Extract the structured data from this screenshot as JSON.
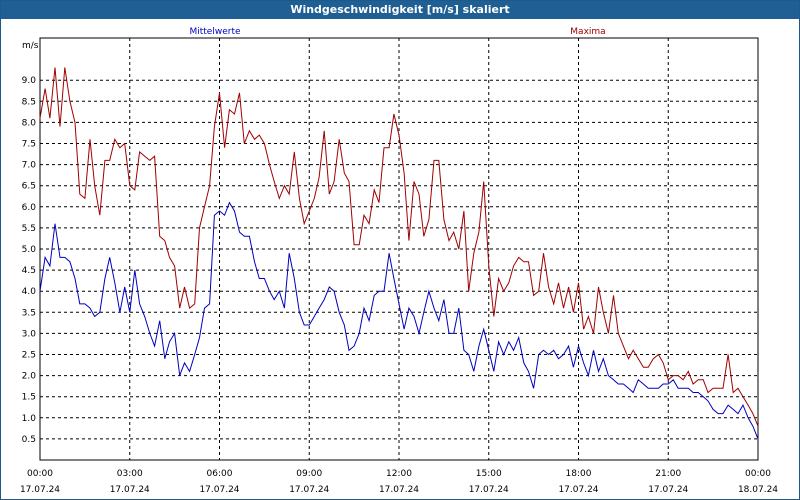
{
  "window": {
    "title": "Windgeschwindigkeit [m/s] skaliert"
  },
  "chart_data": {
    "type": "line",
    "title": "Windgeschwindigkeit [m/s] skaliert",
    "ylabel": "m/s",
    "ylim": [
      0,
      10
    ],
    "yticks": [
      0.5,
      1.0,
      1.5,
      2.0,
      2.5,
      3.0,
      3.5,
      4.0,
      4.5,
      5.0,
      5.5,
      6.0,
      6.5,
      7.0,
      7.5,
      8.0,
      8.5,
      9.0
    ],
    "ytick_labels": [
      "0.5",
      "1.0",
      "1.5",
      "2.0",
      "2.5",
      "3.0",
      "3.5",
      "4.0",
      "4.5",
      "5.0",
      "5.5",
      "6.0",
      "6.5",
      "7.0",
      "7.5",
      "8.0",
      "8.5",
      "9.0"
    ],
    "xlim": [
      0,
      24
    ],
    "xticks": [
      0,
      3,
      6,
      9,
      12,
      15,
      18,
      21,
      24
    ],
    "xtick_labels": [
      {
        "time": "00:00",
        "date": "17.07.24"
      },
      {
        "time": "03:00",
        "date": "17.07.24"
      },
      {
        "time": "06:00",
        "date": "17.07.24"
      },
      {
        "time": "09:00",
        "date": "17.07.24"
      },
      {
        "time": "12:00",
        "date": "17.07.24"
      },
      {
        "time": "15:00",
        "date": "17.07.24"
      },
      {
        "time": "18:00",
        "date": "17.07.24"
      },
      {
        "time": "21:00",
        "date": "17.07.24"
      },
      {
        "time": "00:00",
        "date": "18.07.24"
      }
    ],
    "grid": true,
    "legend_position": "top",
    "series": [
      {
        "name": "Mittelwerte",
        "color": "#0000c0",
        "points": [
          [
            0.0,
            4.0
          ],
          [
            0.17,
            4.8
          ],
          [
            0.33,
            4.6
          ],
          [
            0.5,
            5.6
          ],
          [
            0.67,
            4.8
          ],
          [
            0.83,
            4.8
          ],
          [
            1.0,
            4.7
          ],
          [
            1.17,
            4.3
          ],
          [
            1.33,
            3.7
          ],
          [
            1.5,
            3.7
          ],
          [
            1.67,
            3.6
          ],
          [
            1.83,
            3.4
          ],
          [
            2.0,
            3.5
          ],
          [
            2.17,
            4.3
          ],
          [
            2.33,
            4.8
          ],
          [
            2.5,
            4.2
          ],
          [
            2.67,
            3.5
          ],
          [
            2.83,
            4.1
          ],
          [
            3.0,
            3.5
          ],
          [
            3.17,
            4.5
          ],
          [
            3.33,
            3.7
          ],
          [
            3.5,
            3.4
          ],
          [
            3.67,
            3.0
          ],
          [
            3.83,
            2.7
          ],
          [
            4.0,
            3.3
          ],
          [
            4.17,
            2.4
          ],
          [
            4.33,
            2.8
          ],
          [
            4.5,
            3.0
          ],
          [
            4.67,
            2.0
          ],
          [
            4.83,
            2.3
          ],
          [
            5.0,
            2.1
          ],
          [
            5.17,
            2.5
          ],
          [
            5.33,
            2.9
          ],
          [
            5.5,
            3.6
          ],
          [
            5.67,
            3.7
          ],
          [
            5.83,
            5.8
          ],
          [
            6.0,
            5.9
          ],
          [
            6.17,
            5.8
          ],
          [
            6.33,
            6.1
          ],
          [
            6.5,
            5.9
          ],
          [
            6.67,
            5.4
          ],
          [
            6.83,
            5.3
          ],
          [
            7.0,
            5.3
          ],
          [
            7.17,
            4.7
          ],
          [
            7.33,
            4.3
          ],
          [
            7.5,
            4.3
          ],
          [
            7.67,
            4.0
          ],
          [
            7.83,
            3.8
          ],
          [
            8.0,
            4.0
          ],
          [
            8.17,
            3.6
          ],
          [
            8.33,
            4.9
          ],
          [
            8.5,
            4.3
          ],
          [
            8.67,
            3.5
          ],
          [
            8.83,
            3.2
          ],
          [
            9.0,
            3.2
          ],
          [
            9.17,
            3.4
          ],
          [
            9.33,
            3.6
          ],
          [
            9.5,
            3.8
          ],
          [
            9.67,
            4.1
          ],
          [
            9.83,
            4.0
          ],
          [
            10.0,
            3.5
          ],
          [
            10.17,
            3.2
          ],
          [
            10.33,
            2.6
          ],
          [
            10.5,
            2.7
          ],
          [
            10.67,
            3.0
          ],
          [
            10.83,
            3.6
          ],
          [
            11.0,
            3.3
          ],
          [
            11.17,
            3.9
          ],
          [
            11.33,
            4.0
          ],
          [
            11.5,
            4.0
          ],
          [
            11.67,
            4.9
          ],
          [
            11.83,
            4.3
          ],
          [
            12.0,
            3.7
          ],
          [
            12.17,
            3.1
          ],
          [
            12.33,
            3.6
          ],
          [
            12.5,
            3.4
          ],
          [
            12.67,
            3.0
          ],
          [
            12.83,
            3.5
          ],
          [
            13.0,
            4.0
          ],
          [
            13.17,
            3.6
          ],
          [
            13.33,
            3.3
          ],
          [
            13.5,
            3.8
          ],
          [
            13.67,
            3.0
          ],
          [
            13.83,
            3.0
          ],
          [
            14.0,
            3.6
          ],
          [
            14.17,
            2.6
          ],
          [
            14.33,
            2.5
          ],
          [
            14.5,
            2.1
          ],
          [
            14.67,
            2.7
          ],
          [
            14.83,
            3.1
          ],
          [
            15.0,
            2.6
          ],
          [
            15.17,
            2.1
          ],
          [
            15.33,
            2.8
          ],
          [
            15.5,
            2.5
          ],
          [
            15.67,
            2.8
          ],
          [
            15.83,
            2.6
          ],
          [
            16.0,
            2.9
          ],
          [
            16.17,
            2.3
          ],
          [
            16.33,
            2.1
          ],
          [
            16.5,
            1.7
          ],
          [
            16.67,
            2.5
          ],
          [
            16.83,
            2.6
          ],
          [
            17.0,
            2.5
          ],
          [
            17.17,
            2.6
          ],
          [
            17.33,
            2.4
          ],
          [
            17.5,
            2.5
          ],
          [
            17.67,
            2.7
          ],
          [
            17.83,
            2.2
          ],
          [
            18.0,
            2.7
          ],
          [
            18.17,
            2.3
          ],
          [
            18.33,
            2.0
          ],
          [
            18.5,
            2.6
          ],
          [
            18.67,
            2.1
          ],
          [
            18.83,
            2.4
          ],
          [
            19.0,
            2.0
          ],
          [
            19.17,
            1.9
          ],
          [
            19.33,
            1.8
          ],
          [
            19.5,
            1.8
          ],
          [
            19.67,
            1.7
          ],
          [
            19.83,
            1.6
          ],
          [
            20.0,
            1.9
          ],
          [
            20.17,
            1.8
          ],
          [
            20.33,
            1.7
          ],
          [
            20.5,
            1.7
          ],
          [
            20.67,
            1.7
          ],
          [
            20.83,
            1.8
          ],
          [
            21.0,
            1.8
          ],
          [
            21.17,
            1.9
          ],
          [
            21.33,
            1.7
          ],
          [
            21.5,
            1.7
          ],
          [
            21.67,
            1.7
          ],
          [
            21.83,
            1.6
          ],
          [
            22.0,
            1.6
          ],
          [
            22.17,
            1.5
          ],
          [
            22.33,
            1.4
          ],
          [
            22.5,
            1.2
          ],
          [
            22.67,
            1.1
          ],
          [
            22.83,
            1.1
          ],
          [
            23.0,
            1.3
          ],
          [
            23.17,
            1.2
          ],
          [
            23.33,
            1.1
          ],
          [
            23.5,
            1.3
          ],
          [
            23.67,
            1.0
          ],
          [
            23.83,
            0.8
          ],
          [
            24.0,
            0.5
          ]
        ]
      },
      {
        "name": "Maxima",
        "color": "#a00000",
        "points": [
          [
            0.0,
            8.1
          ],
          [
            0.17,
            8.8
          ],
          [
            0.33,
            8.1
          ],
          [
            0.5,
            9.3
          ],
          [
            0.67,
            7.9
          ],
          [
            0.83,
            9.3
          ],
          [
            1.0,
            8.5
          ],
          [
            1.17,
            8.0
          ],
          [
            1.33,
            6.3
          ],
          [
            1.5,
            6.2
          ],
          [
            1.67,
            7.6
          ],
          [
            1.83,
            6.5
          ],
          [
            2.0,
            5.8
          ],
          [
            2.17,
            7.1
          ],
          [
            2.33,
            7.1
          ],
          [
            2.5,
            7.6
          ],
          [
            2.67,
            7.4
          ],
          [
            2.83,
            7.5
          ],
          [
            3.0,
            6.5
          ],
          [
            3.17,
            6.4
          ],
          [
            3.33,
            7.3
          ],
          [
            3.5,
            7.2
          ],
          [
            3.67,
            7.1
          ],
          [
            3.83,
            7.2
          ],
          [
            4.0,
            5.3
          ],
          [
            4.17,
            5.2
          ],
          [
            4.33,
            4.8
          ],
          [
            4.5,
            4.6
          ],
          [
            4.67,
            3.6
          ],
          [
            4.83,
            4.1
          ],
          [
            5.0,
            3.6
          ],
          [
            5.17,
            3.7
          ],
          [
            5.33,
            5.5
          ],
          [
            5.5,
            6.0
          ],
          [
            5.67,
            6.5
          ],
          [
            5.83,
            7.9
          ],
          [
            6.0,
            8.7
          ],
          [
            6.17,
            7.4
          ],
          [
            6.33,
            8.3
          ],
          [
            6.5,
            8.2
          ],
          [
            6.67,
            8.7
          ],
          [
            6.83,
            7.5
          ],
          [
            7.0,
            7.8
          ],
          [
            7.17,
            7.6
          ],
          [
            7.33,
            7.7
          ],
          [
            7.5,
            7.5
          ],
          [
            7.67,
            7.0
          ],
          [
            7.83,
            6.6
          ],
          [
            8.0,
            6.2
          ],
          [
            8.17,
            6.5
          ],
          [
            8.33,
            6.3
          ],
          [
            8.5,
            7.3
          ],
          [
            8.67,
            6.2
          ],
          [
            8.83,
            5.6
          ],
          [
            9.0,
            5.9
          ],
          [
            9.17,
            6.2
          ],
          [
            9.33,
            6.7
          ],
          [
            9.5,
            7.8
          ],
          [
            9.67,
            6.3
          ],
          [
            9.83,
            6.6
          ],
          [
            10.0,
            7.6
          ],
          [
            10.17,
            6.8
          ],
          [
            10.33,
            6.6
          ],
          [
            10.5,
            5.1
          ],
          [
            10.67,
            5.1
          ],
          [
            10.83,
            5.8
          ],
          [
            11.0,
            5.6
          ],
          [
            11.17,
            6.4
          ],
          [
            11.33,
            6.1
          ],
          [
            11.5,
            7.4
          ],
          [
            11.67,
            7.4
          ],
          [
            11.83,
            8.2
          ],
          [
            12.0,
            7.7
          ],
          [
            12.17,
            6.8
          ],
          [
            12.33,
            5.2
          ],
          [
            12.5,
            6.6
          ],
          [
            12.67,
            6.3
          ],
          [
            12.83,
            5.3
          ],
          [
            13.0,
            5.7
          ],
          [
            13.17,
            7.1
          ],
          [
            13.33,
            7.1
          ],
          [
            13.5,
            5.7
          ],
          [
            13.67,
            5.2
          ],
          [
            13.83,
            5.4
          ],
          [
            14.0,
            5.0
          ],
          [
            14.17,
            5.9
          ],
          [
            14.33,
            4.0
          ],
          [
            14.5,
            4.9
          ],
          [
            14.67,
            5.4
          ],
          [
            14.83,
            6.6
          ],
          [
            15.0,
            4.6
          ],
          [
            15.17,
            3.4
          ],
          [
            15.33,
            4.3
          ],
          [
            15.5,
            4.0
          ],
          [
            15.67,
            4.2
          ],
          [
            15.83,
            4.6
          ],
          [
            16.0,
            4.8
          ],
          [
            16.17,
            4.7
          ],
          [
            16.33,
            4.7
          ],
          [
            16.5,
            3.9
          ],
          [
            16.67,
            4.0
          ],
          [
            16.83,
            4.9
          ],
          [
            17.0,
            4.1
          ],
          [
            17.17,
            3.7
          ],
          [
            17.33,
            4.2
          ],
          [
            17.5,
            3.6
          ],
          [
            17.67,
            4.1
          ],
          [
            17.83,
            3.5
          ],
          [
            18.0,
            4.2
          ],
          [
            18.17,
            3.1
          ],
          [
            18.33,
            3.4
          ],
          [
            18.5,
            3.0
          ],
          [
            18.67,
            4.1
          ],
          [
            18.83,
            3.5
          ],
          [
            19.0,
            3.0
          ],
          [
            19.17,
            3.9
          ],
          [
            19.33,
            3.0
          ],
          [
            19.5,
            2.7
          ],
          [
            19.67,
            2.4
          ],
          [
            19.83,
            2.6
          ],
          [
            20.0,
            2.4
          ],
          [
            20.17,
            2.2
          ],
          [
            20.33,
            2.2
          ],
          [
            20.5,
            2.4
          ],
          [
            20.67,
            2.5
          ],
          [
            20.83,
            2.3
          ],
          [
            21.0,
            1.9
          ],
          [
            21.17,
            2.0
          ],
          [
            21.33,
            2.0
          ],
          [
            21.5,
            1.9
          ],
          [
            21.67,
            2.1
          ],
          [
            21.83,
            1.8
          ],
          [
            22.0,
            1.9
          ],
          [
            22.17,
            1.9
          ],
          [
            22.33,
            1.6
          ],
          [
            22.5,
            1.7
          ],
          [
            22.67,
            1.7
          ],
          [
            22.83,
            1.7
          ],
          [
            23.0,
            2.5
          ],
          [
            23.17,
            1.6
          ],
          [
            23.33,
            1.7
          ],
          [
            23.5,
            1.5
          ],
          [
            23.67,
            1.3
          ],
          [
            23.83,
            1.1
          ],
          [
            24.0,
            0.8
          ]
        ]
      }
    ]
  }
}
